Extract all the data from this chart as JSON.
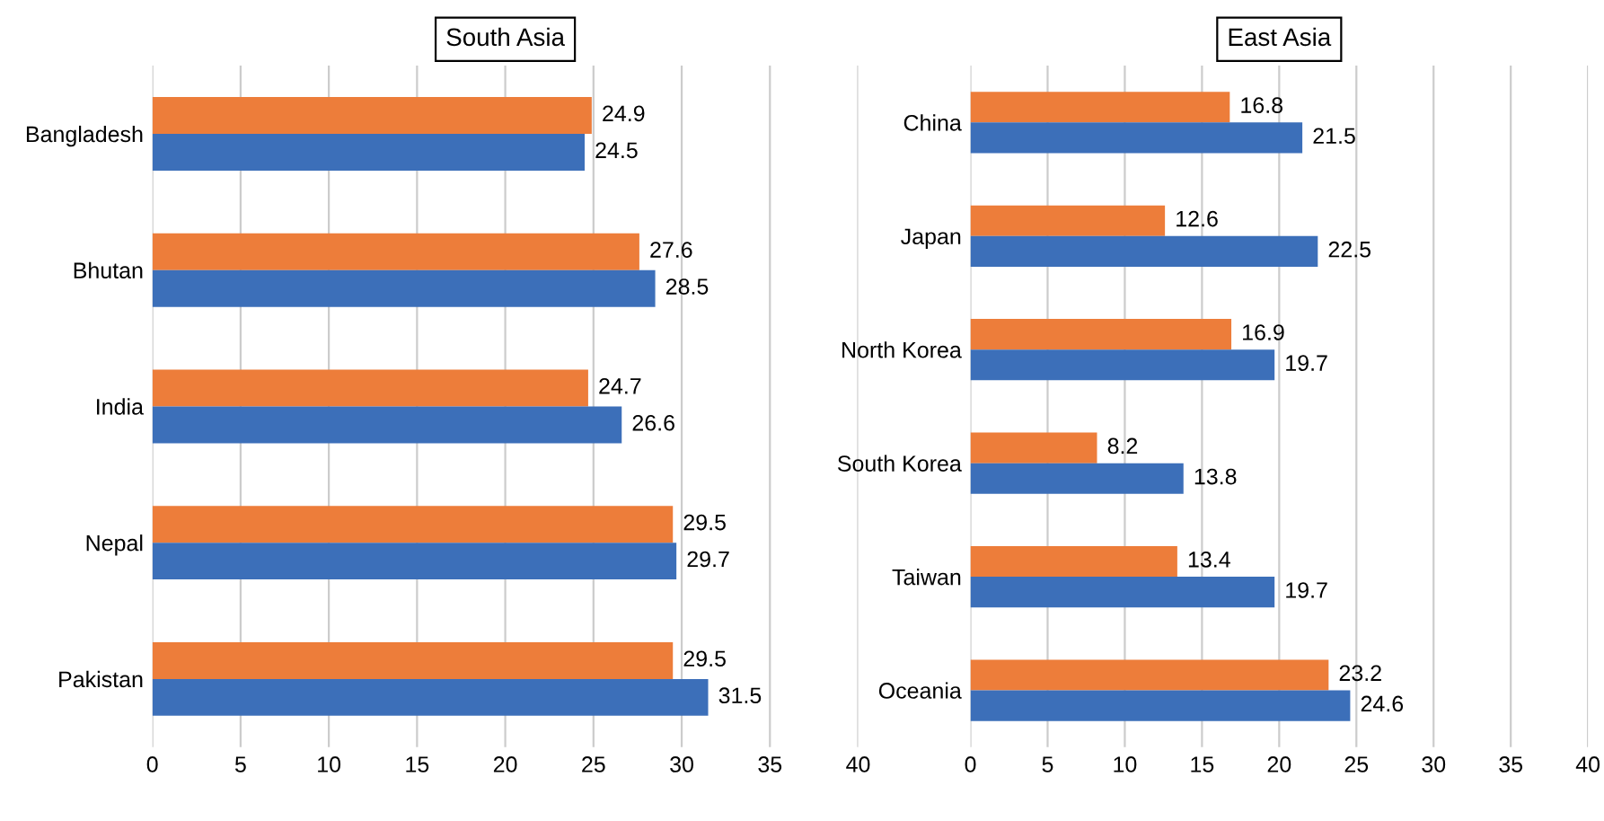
{
  "chart_data": [
    {
      "type": "bar",
      "orientation": "horizontal",
      "title": "South Asia",
      "categories": [
        "Bangladesh",
        "Bhutan",
        "India",
        "Nepal",
        "Pakistan"
      ],
      "series": [
        {
          "color": "#ed7d3a",
          "values": [
            24.9,
            27.6,
            24.7,
            29.5,
            29.5
          ]
        },
        {
          "color": "#3c6fb9",
          "values": [
            24.5,
            28.5,
            26.6,
            29.7,
            31.5
          ]
        }
      ],
      "xlim": [
        0,
        40
      ],
      "xticks": [
        0,
        5,
        10,
        15,
        20,
        25,
        30,
        35,
        40
      ],
      "grid": "x",
      "data_labels": true,
      "legend": false
    },
    {
      "type": "bar",
      "orientation": "horizontal",
      "title": "East Asia",
      "categories": [
        "China",
        "Japan",
        "North Korea",
        "South Korea",
        "Taiwan",
        "Oceania"
      ],
      "series": [
        {
          "color": "#ed7d3a",
          "values": [
            16.8,
            12.6,
            16.9,
            8.2,
            13.4,
            23.2
          ]
        },
        {
          "color": "#3c6fb9",
          "values": [
            21.5,
            22.5,
            19.7,
            13.8,
            19.7,
            24.6
          ]
        }
      ],
      "xlim": [
        0,
        40
      ],
      "xticks": [
        0,
        5,
        10,
        15,
        20,
        25,
        30,
        35,
        40
      ],
      "grid": "x",
      "data_labels": true,
      "legend": false
    }
  ]
}
